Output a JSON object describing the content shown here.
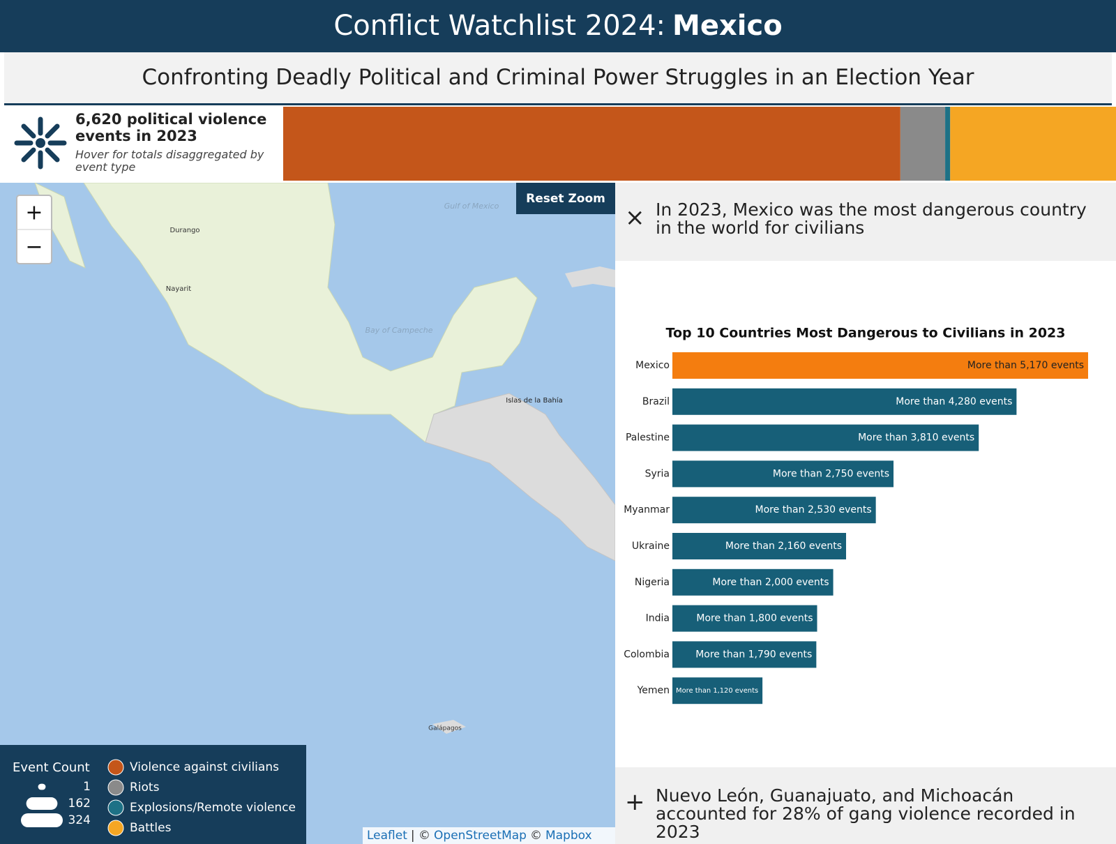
{
  "header": {
    "title": "Conflict Watchlist 2024:",
    "title_emphasis": "Mexico",
    "subtitle": "Confronting Deadly Political and Criminal Power Struggles in an Election Year"
  },
  "summary": {
    "headline": "6,620 political violence events in 2023",
    "hint": "Hover for totals disaggregated by event type"
  },
  "event_bar": {
    "values": [
      4906,
      356,
      40,
      1318
    ]
  },
  "map": {
    "reset_zoom": "Reset Zoom",
    "zoom_in": "+",
    "zoom_out": "−",
    "labels": [
      "Gulf of Mexico",
      "Bay of Campeche",
      "Durango",
      "Nayarit",
      "Islas de la Bahía",
      "Galápagos"
    ],
    "attribution": [
      "Leaflet",
      "| ©",
      "OpenStreetMap",
      "©",
      "Mapbox"
    ]
  },
  "legend": {
    "title": "Event Count",
    "sizes": [
      1,
      162,
      324
    ],
    "items": [
      {
        "name": "Violence against civilians",
        "color": "#c4561a"
      },
      {
        "name": "Riots",
        "color": "#8a8a8a"
      },
      {
        "name": "Explosions/Remote violence",
        "color": "#1d7186"
      },
      {
        "name": "Battles",
        "color": "#f5a623"
      }
    ]
  },
  "panel": {
    "close": "×",
    "heading": "In 2023, Mexico was the most dangerous country in the world for civilians",
    "expand": "+",
    "footer": "Nuevo León, Guanajuato, and Michoacán accounted for 28% of gang violence recorded in 2023"
  },
  "chart_data": {
    "type": "bar",
    "orientation": "horizontal",
    "title": "Top 10 Countries Most Dangerous to Civilians in 2023",
    "categories": [
      "Mexico",
      "Brazil",
      "Palestine",
      "Syria",
      "Myanmar",
      "Ukraine",
      "Nigeria",
      "India",
      "Colombia",
      "Yemen"
    ],
    "values": [
      5170,
      4280,
      3810,
      2750,
      2530,
      2160,
      2000,
      1800,
      1790,
      1120
    ],
    "value_labels": [
      "More than 5,170 events",
      "More than 4,280 events",
      "More than 3,810 events",
      "More than 2,750 events",
      "More than 2,530 events",
      "More than 2,160 events",
      "More than 2,000 events",
      "More than 1,800 events",
      "More than 1,790 events",
      "More than 1,120 events"
    ],
    "colors": [
      "#f47d0f",
      "#175f78",
      "#175f78",
      "#175f78",
      "#175f78",
      "#175f78",
      "#175f78",
      "#175f78",
      "#175f78",
      "#175f78"
    ]
  }
}
